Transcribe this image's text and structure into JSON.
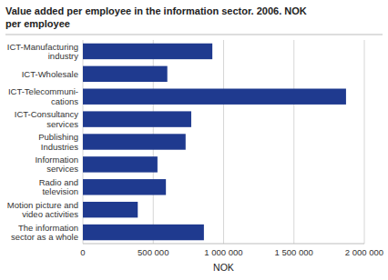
{
  "chart_data": {
    "type": "bar",
    "orientation": "horizontal",
    "title": "Value added per employee in the information sector. 2006. NOK",
    "subtitle": "per employee",
    "categories": [
      "ICT-Manufacturing\nindustry",
      "ICT-Wholesale",
      "ICT-Telecommuni-\ncations",
      "ICT-Consultancy\nservices",
      "Publishing\nIndustries",
      "Information\nservices",
      "Radio and\ntelevision",
      "Motion picture and\nvideo activities",
      "The information\nsector as a whole"
    ],
    "values": [
      920000,
      600000,
      1870000,
      770000,
      730000,
      530000,
      590000,
      390000,
      860000
    ],
    "color": "#1f3a8f",
    "xlabel": "NOK",
    "xlim": [
      0,
      2000000
    ],
    "xticks": [
      0,
      {
        "value": 500000,
        "label": "500 000"
      },
      {
        "value": 1000000,
        "label": "1 000 000"
      },
      {
        "value": 1500000,
        "label": "1 500 000"
      },
      {
        "value": 2000000,
        "label": "2 000 000"
      }
    ],
    "grid": true
  }
}
